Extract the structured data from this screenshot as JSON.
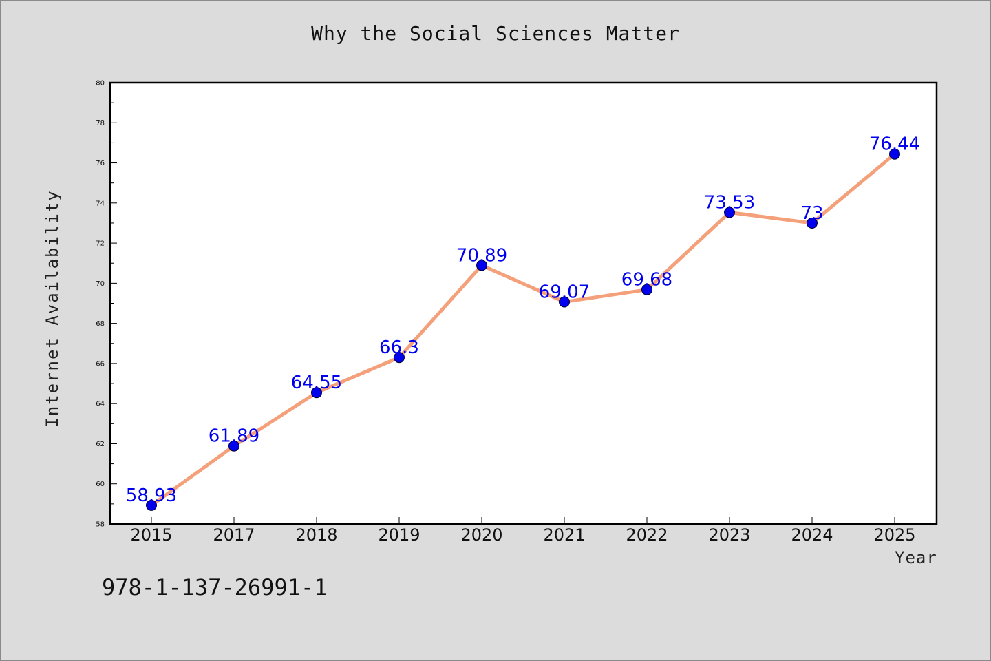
{
  "chart_data": {
    "type": "line",
    "title": "Why the Social Sciences Matter",
    "xlabel": "Year",
    "ylabel": "Internet Availability",
    "categories": [
      "2015",
      "2017",
      "2018",
      "2019",
      "2020",
      "2021",
      "2022",
      "2023",
      "2024",
      "2025"
    ],
    "series": [
      {
        "values": [
          58.93,
          61.89,
          64.55,
          66.3,
          70.89,
          69.07,
          69.68,
          73.53,
          73,
          76.44
        ],
        "labels": [
          "58.93",
          "61.89",
          "64.55",
          "66.3",
          "70.89",
          "69.07",
          "69.68",
          "73.53",
          "73",
          "76.44"
        ],
        "line_color": "#f4a07a",
        "marker_color": "#0000ee"
      }
    ],
    "ylim": [
      58,
      80
    ],
    "yticks": [
      "58",
      "60",
      "62",
      "64",
      "66",
      "68",
      "70",
      "72",
      "74",
      "76",
      "78",
      "80"
    ],
    "grid": false,
    "legend": "none"
  },
  "footer": {
    "isbn": "978-1-137-26991-1"
  }
}
